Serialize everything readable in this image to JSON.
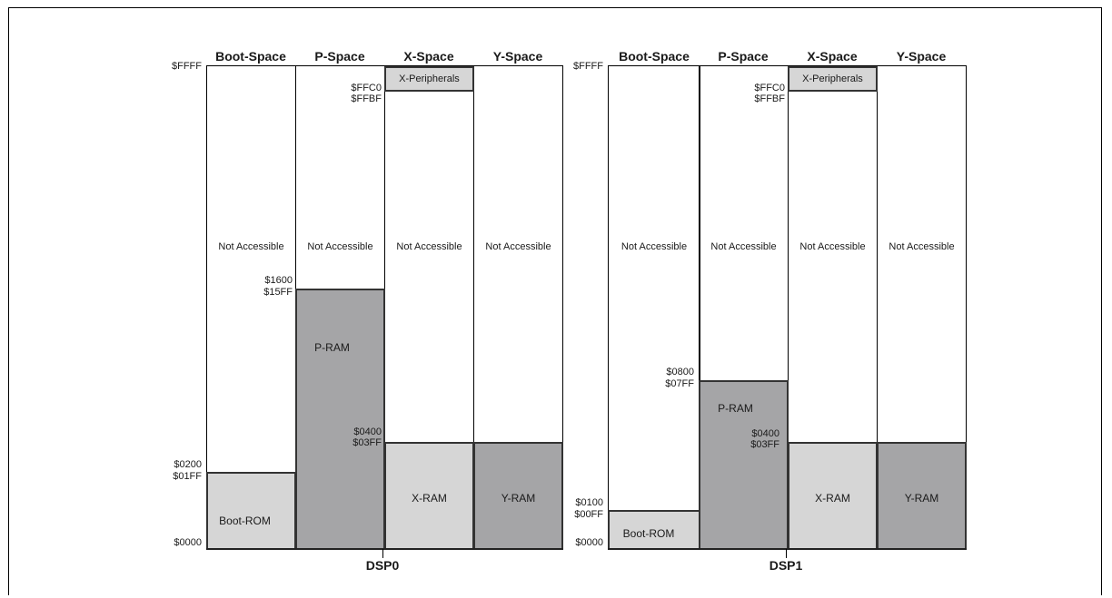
{
  "diagrams": [
    {
      "name": "DSP0",
      "headers": [
        "Boot-Space",
        "P-Space",
        "X-Space",
        "Y-Space"
      ],
      "top_address": "$FFFF",
      "bottom_address": "$0000",
      "not_accessible": "Not Accessible",
      "x_peripherals": "X-Peripherals",
      "x_periph_addr_hi": "$FFC0",
      "x_periph_addr_lo": "$FFBF",
      "boot_rom": {
        "label": "Boot-ROM",
        "addr_hi": "$0200",
        "addr_lo": "$01FF"
      },
      "p_ram": {
        "label": "P-RAM",
        "addr_hi": "$1600",
        "addr_lo": "$15FF"
      },
      "x_ram": {
        "label": "X-RAM",
        "addr_hi": "$0400",
        "addr_lo": "$03FF"
      },
      "y_ram": {
        "label": "Y-RAM"
      }
    },
    {
      "name": "DSP1",
      "headers": [
        "Boot-Space",
        "P-Space",
        "X-Space",
        "Y-Space"
      ],
      "top_address": "$FFFF",
      "bottom_address": "$0000",
      "not_accessible": "Not Accessible",
      "x_peripherals": "X-Peripherals",
      "x_periph_addr_hi": "$FFC0",
      "x_periph_addr_lo": "$FFBF",
      "boot_rom": {
        "label": "Boot-ROM",
        "addr_hi": "$0100",
        "addr_lo": "$00FF"
      },
      "p_ram": {
        "label": "P-RAM",
        "addr_hi": "$0800",
        "addr_lo": "$07FF"
      },
      "x_ram": {
        "label": "X-RAM",
        "addr_hi": "$0400",
        "addr_lo": "$03FF"
      },
      "y_ram": {
        "label": "Y-RAM"
      }
    }
  ],
  "colors": {
    "light_region": "#d6d6d6",
    "dark_region": "#a5a5a7"
  }
}
